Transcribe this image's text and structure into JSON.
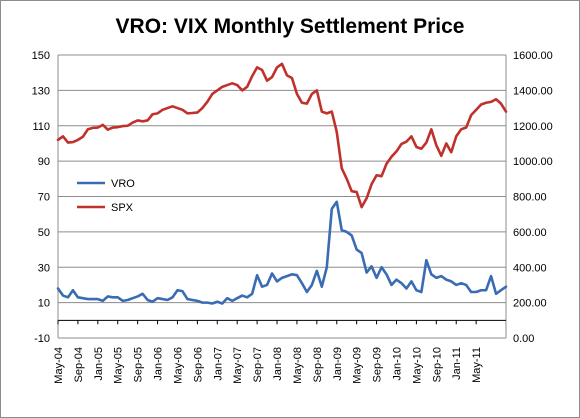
{
  "chart_data": {
    "type": "line",
    "title": "VRO: VIX Monthly Settlement Price",
    "xlabel": "",
    "ylabel_left": "",
    "ylabel_right": "",
    "grid": "horizontal",
    "legend_position": "left-middle",
    "y_left_range": [
      -10,
      150
    ],
    "y_left_ticks": [
      "-10",
      "10",
      "30",
      "50",
      "70",
      "90",
      "110",
      "130",
      "150"
    ],
    "y_right_range": [
      0,
      1600
    ],
    "y_right_ticks": [
      "0.00",
      "200.00",
      "400.00",
      "600.00",
      "800.00",
      "1000.00",
      "1200.00",
      "1400.00",
      "1600.00"
    ],
    "x_tick_labels": [
      "May-04",
      "Sep-04",
      "Jan-05",
      "May-05",
      "Sep-05",
      "Jan-06",
      "May-06",
      "Sep-06",
      "Jan-07",
      "May-07",
      "Sep-07",
      "Jan-08",
      "May-08",
      "Sep-08",
      "Jan-09",
      "May-09",
      "Sep-09",
      "Jan-10",
      "May-10",
      "Sep-10",
      "Jan-11",
      "May-11"
    ],
    "series": [
      {
        "name": "VRO",
        "axis": "left",
        "color": "#3a6cb4",
        "values": [
          18,
          14,
          13,
          17,
          13,
          12.5,
          12,
          12,
          12,
          11,
          13.5,
          13,
          13,
          11,
          11.5,
          12.5,
          13.5,
          15,
          11.5,
          10.5,
          12.5,
          12,
          11.5,
          13,
          17,
          16.5,
          12,
          11.5,
          11,
          10,
          10,
          9.5,
          10.5,
          9.5,
          12.5,
          11,
          12.5,
          14,
          13,
          15,
          25.5,
          19,
          20,
          26.5,
          22,
          24,
          25,
          26,
          25.5,
          21,
          16,
          20,
          28,
          19,
          30,
          63,
          67,
          51,
          50,
          48,
          40,
          38,
          27,
          30.5,
          24,
          30,
          26,
          20,
          23,
          21,
          18,
          22,
          17,
          16,
          34,
          26,
          24,
          25,
          23,
          22,
          20,
          21,
          20,
          16,
          16,
          17,
          17,
          25,
          15,
          17,
          19
        ]
      },
      {
        "name": "SPX",
        "axis": "right",
        "color": "#c0312b",
        "values": [
          1120,
          1140,
          1105,
          1108,
          1120,
          1138,
          1180,
          1188,
          1190,
          1205,
          1178,
          1190,
          1192,
          1198,
          1200,
          1218,
          1230,
          1225,
          1230,
          1265,
          1270,
          1290,
          1300,
          1310,
          1300,
          1290,
          1270,
          1272,
          1275,
          1300,
          1335,
          1380,
          1400,
          1420,
          1430,
          1440,
          1430,
          1400,
          1420,
          1480,
          1530,
          1515,
          1455,
          1475,
          1530,
          1550,
          1485,
          1470,
          1380,
          1330,
          1325,
          1380,
          1400,
          1280,
          1270,
          1280,
          1165,
          960,
          900,
          830,
          825,
          740,
          790,
          870,
          920,
          915,
          985,
          1025,
          1055,
          1097,
          1110,
          1140,
          1080,
          1070,
          1105,
          1180,
          1090,
          1030,
          1100,
          1050,
          1140,
          1180,
          1190,
          1260,
          1290,
          1320,
          1330,
          1335,
          1350,
          1325,
          1280
        ]
      }
    ]
  }
}
